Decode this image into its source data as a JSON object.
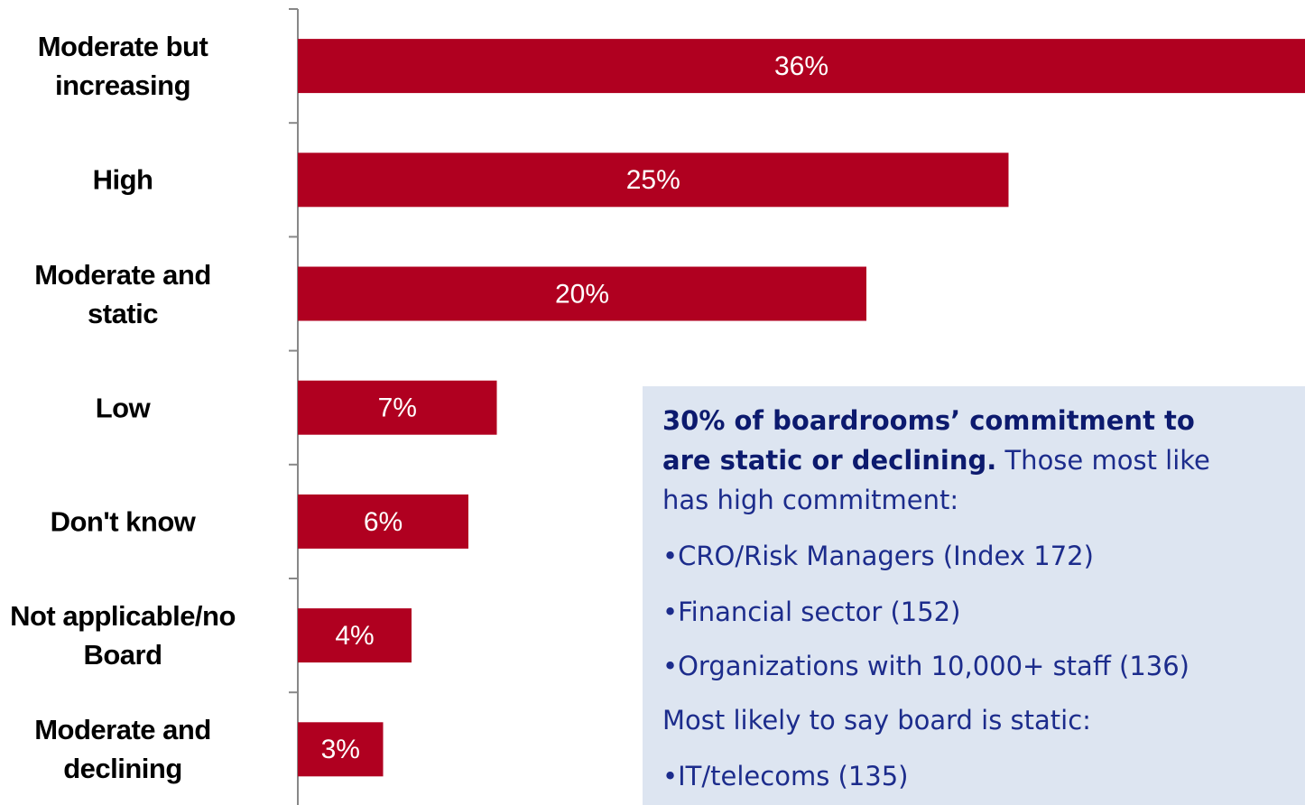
{
  "chart_data": {
    "type": "bar",
    "orientation": "horizontal",
    "categories": [
      "Moderate but\nincreasing",
      "High",
      "Moderate and\nstatic",
      "Low",
      "Don't know",
      "Not applicable/no\nBoard",
      "Moderate and\ndeclining"
    ],
    "values": [
      36,
      25,
      20,
      7,
      6,
      4,
      3
    ],
    "value_labels": [
      "36%",
      "25%",
      "20%",
      "7%",
      "6%",
      "4%",
      "3%"
    ],
    "color": "#b00020",
    "xlim": [
      0,
      36
    ]
  },
  "callout": {
    "lines": [
      [
        {
          "text": "30% of boardrooms’ commitment to",
          "bold": true
        }
      ],
      [
        {
          "text": "are static or declining.",
          "bold": true
        },
        {
          "text": " Those most like",
          "bold": false
        }
      ],
      [
        {
          "text": "has high commitment:",
          "bold": false
        }
      ],
      [
        {
          "text": "•CRO/Risk Managers (Index 172)",
          "bold": false
        }
      ],
      [
        {
          "text": "•Financial sector (152)",
          "bold": false
        }
      ],
      [
        {
          "text": "•Organizations with 10,000+ staff (136)",
          "bold": false
        }
      ],
      [
        {
          "text": "Most likely to say board is static:",
          "bold": false
        }
      ],
      [
        {
          "text": "•IT/telecoms (135)",
          "bold": false
        }
      ]
    ]
  }
}
